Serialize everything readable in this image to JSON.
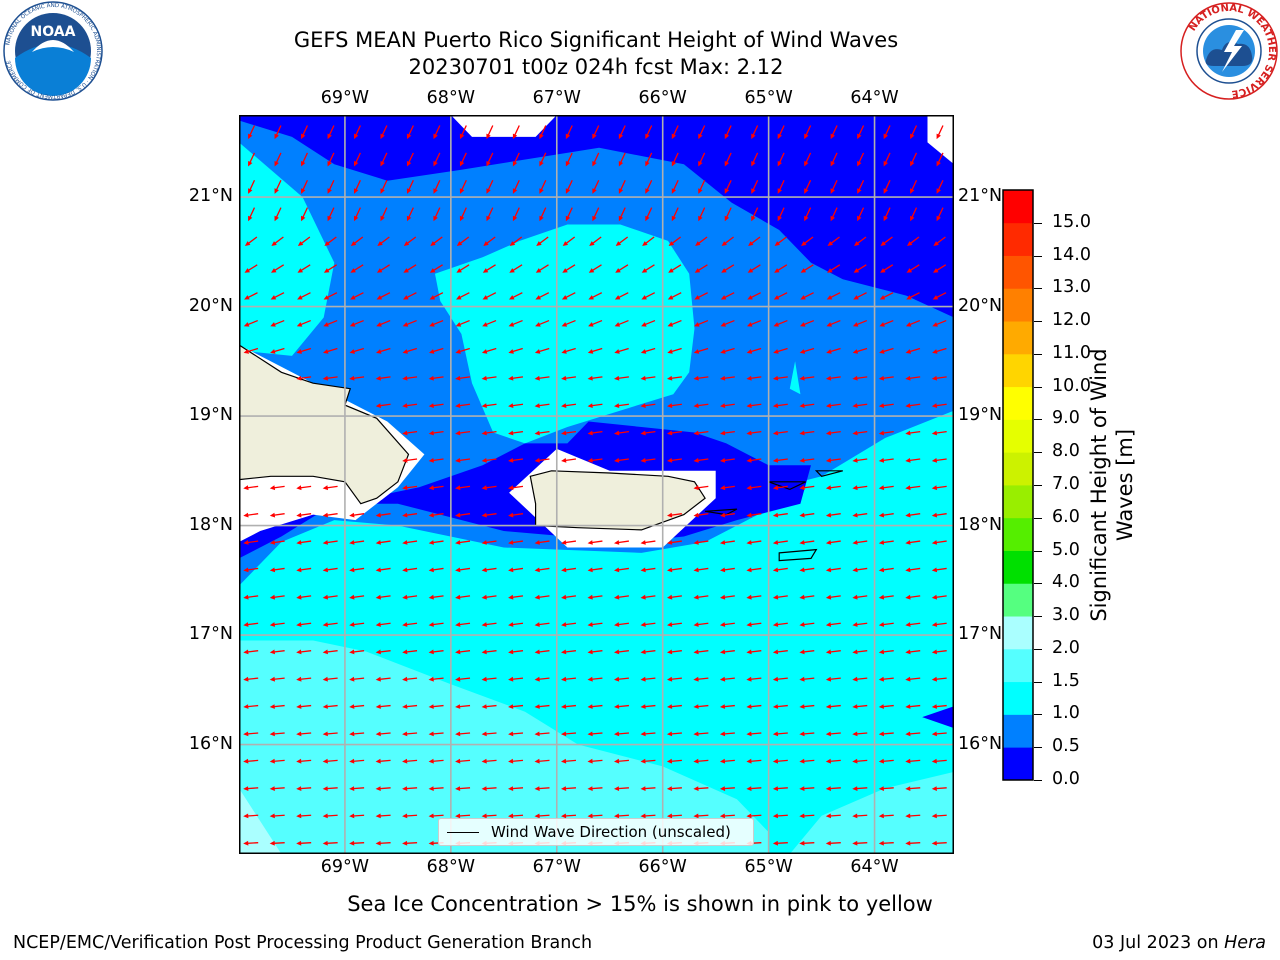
{
  "title": {
    "line1": "GEFS MEAN Puerto Rico Significant Height of Wind Waves",
    "line2": "20230701 t00z 024h fcst   Max: 2.12"
  },
  "logos": {
    "left": {
      "text": "NOAA",
      "ring_text": "NATIONAL OCEANIC AND ATMOSPHERIC ADMINISTRATION · U.S. DEPARTMENT OF COMMERCE",
      "color": "#1d4f91"
    },
    "right": {
      "ring_text": "NATIONAL WEATHER SERVICE",
      "color": "#d62020"
    }
  },
  "map": {
    "lon_range": [
      -70,
      -63.25
    ],
    "lat_range": [
      15,
      21.75
    ],
    "lon_ticks": [
      "69°W",
      "68°W",
      "67°W",
      "66°W",
      "65°W",
      "64°W"
    ],
    "lat_ticks": [
      "21°N",
      "20°N",
      "19°N",
      "18°N",
      "17°N",
      "16°N"
    ],
    "lon_tick_values": [
      -69,
      -68,
      -67,
      -66,
      -65,
      -64
    ],
    "lat_tick_values": [
      21,
      20,
      19,
      18,
      17,
      16
    ],
    "grid": true,
    "background_level_color": "#00ffff",
    "land_color": "#efefdc",
    "arrow_color": "#ff0000",
    "arrow_direction": "from east (pointing west-southwest)"
  },
  "colorbar": {
    "label": "Significant Height of Wind Waves [m]",
    "label_line1": "Significant Height of Wind",
    "label_line2": "Waves [m]",
    "ticks": [
      "15.0",
      "14.0",
      "13.0",
      "12.0",
      "11.0",
      "10.0",
      "9.0",
      "8.0",
      "7.0",
      "6.0",
      "5.0",
      "4.0",
      "3.0",
      "2.0",
      "1.5",
      "1.0",
      "0.5",
      "0.0"
    ],
    "colors": [
      "#0000ff",
      "#0080ff",
      "#00ffff",
      "#55ffff",
      "#aaffff",
      "#55ff80",
      "#00e000",
      "#55ee00",
      "#99ee00",
      "#ccf200",
      "#e5ff00",
      "#ffff00",
      "#ffd500",
      "#ffaa00",
      "#ff8000",
      "#ff5500",
      "#ff2a00",
      "#ff0000"
    ]
  },
  "legend": {
    "label": "Wind Wave Direction (unscaled)"
  },
  "footer": {
    "note": "Sea Ice Concentration > 15% is shown in pink to yellow",
    "left": "NCEP/EMC/Verification Post Processing Product Generation Branch",
    "right_date": "03 Jul 2023 on ",
    "right_machine": "Hera"
  }
}
